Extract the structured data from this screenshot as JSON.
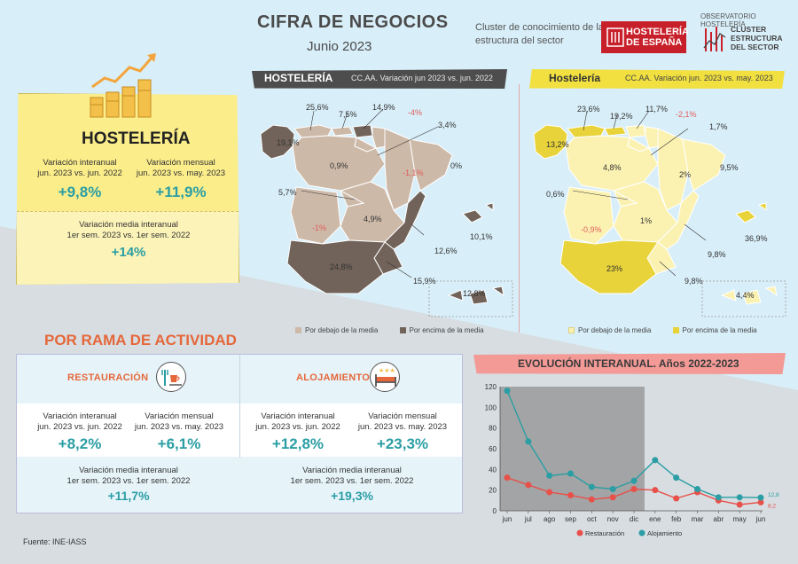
{
  "header": {
    "title": "CIFRA DE NEGOCIOS",
    "subtitle": "Junio 2023",
    "cluster_text": "Cluster de conocimiento de la estructura del sector",
    "logo_hosteleria": "HOSTELERÍA DE ESPAÑA",
    "observatorio_label": "OBSERVATORIO HOSTELERÍA",
    "observatorio_logo": "CLUSTER ESTRUCTURA DEL SECTOR"
  },
  "summary": {
    "title": "HOSTELERÍA",
    "interanual_label": "Variación interanual",
    "interanual_period": "jun. 2023 vs. jun. 2022",
    "interanual_value": "+9,8%",
    "mensual_label": "Variación mensual",
    "mensual_period": "jun. 2023 vs. may. 2023",
    "mensual_value": "+11,9%",
    "media_label": "Variación media interanual",
    "media_period": "1er sem. 2023 vs. 1er sem. 2022",
    "media_value": "+14%"
  },
  "map_interanual": {
    "header_main": "HOSTELERÍA",
    "header_sub": "CC.AA. Variación jun 2023 vs. jun. 2022",
    "labels": [
      "25,6%",
      "7,5%",
      "14,9%",
      "-4%",
      "3,4%",
      "19,1%",
      "0,9%",
      "-1,1%",
      "0%",
      "5,7%",
      "4,9%",
      "-1%",
      "10,1%",
      "12,6%",
      "24,8%",
      "15,9%",
      "12,8%"
    ],
    "legend_below": "Por debajo de la media",
    "legend_above": "Por encima de la media",
    "color_below": "#cdb9a8",
    "color_above": "#716359"
  },
  "map_mensual": {
    "header_main": "Hostelería",
    "header_sub": "CC.AA. Variación jun. 2023 vs. may. 2023",
    "labels": [
      "23,6%",
      "19,2%",
      "11,7%",
      "-2,1%",
      "1,7%",
      "13,2%",
      "4,8%",
      "2%",
      "9,5%",
      "0,6%",
      "1%",
      "-0,9%",
      "36,9%",
      "9,8%",
      "23%",
      "9,8%",
      "4,4%"
    ],
    "legend_below": "Por debajo de la media",
    "legend_above": "Por encima de la media",
    "color_below": "#fbf2b2",
    "color_above": "#e8d33a"
  },
  "rama": {
    "title": "POR RAMA DE ACTIVIDAD",
    "restauracion": {
      "name": "RESTAURACIÓN",
      "interanual_label": "Variación interanual",
      "interanual_period": "jun. 2023 vs. jun. 2022",
      "interanual_value": "+8,2%",
      "mensual_label": "Variación mensual",
      "mensual_period": "jun. 2023 vs. may. 2023",
      "mensual_value": "+6,1%",
      "media_label": "Variación media interanual",
      "media_period": "1er sem. 2023 vs. 1er sem. 2022",
      "media_value": "+11,7%"
    },
    "alojamiento": {
      "name": "ALOJAMIENTO",
      "interanual_label": "Variación interanual",
      "interanual_period": "jun. 2023 vs. jun. 2022",
      "interanual_value": "+12,8%",
      "mensual_label": "Variación mensual",
      "mensual_period": "jun. 2023 vs. may. 2023",
      "mensual_value": "+23,3%",
      "media_label": "Variación media interanual",
      "media_period": "1er sem. 2023 vs. 1er sem. 2022",
      "media_value": "+19,3%"
    }
  },
  "chart_data": {
    "type": "line",
    "title": "EVOLUCIÓN INTERANUAL. Años 2022-2023",
    "categories": [
      "jun",
      "jul",
      "ago",
      "sep",
      "oct",
      "nov",
      "dic",
      "ene",
      "feb",
      "mar",
      "abr",
      "may",
      "jun"
    ],
    "series": [
      {
        "name": "Restauración",
        "color": "#e8504a",
        "values": [
          32,
          25,
          18,
          15,
          11,
          13,
          21,
          20,
          12,
          18,
          10,
          6,
          8.2
        ]
      },
      {
        "name": "Alojamiento",
        "color": "#2a9ea4",
        "values": [
          116,
          67,
          34,
          36,
          23,
          21,
          29,
          49,
          32,
          21,
          13,
          13,
          12.8
        ]
      }
    ],
    "end_labels": [
      "12,8",
      "8,2"
    ],
    "yticks": [
      0,
      20,
      40,
      60,
      80,
      100,
      120
    ],
    "ylim": [
      0,
      120
    ],
    "shaded_range": [
      0,
      6
    ],
    "grid": false,
    "legend": "bottom"
  },
  "footer": {
    "source": "Fuente: INE-IASS"
  }
}
